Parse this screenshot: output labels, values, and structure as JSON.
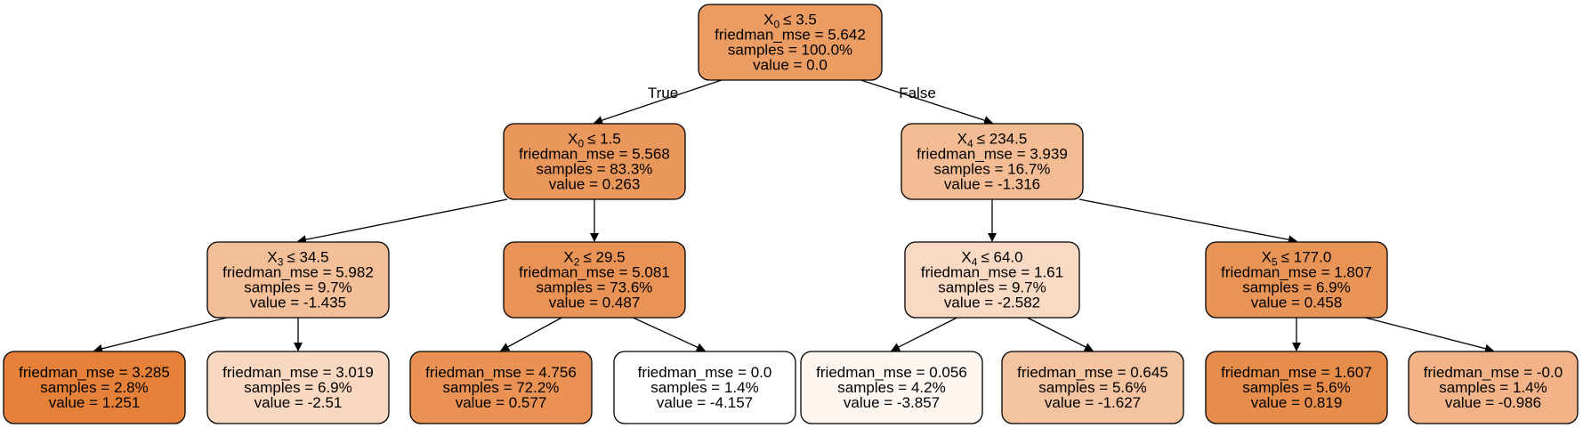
{
  "edge_labels": {
    "true_label": "True",
    "false_label": "False"
  },
  "nodes": [
    {
      "id": "root",
      "split_var": "X",
      "split_sub": "0",
      "split_op": "≤ 3.5",
      "mse": "friedman_mse = 5.642",
      "samples": "samples = 100.0%",
      "value": "value = 0.0",
      "fill": "#eb9c63"
    },
    {
      "id": "n1",
      "split_var": "X",
      "split_sub": "0",
      "split_op": "≤ 1.5",
      "mse": "friedman_mse = 5.568",
      "samples": "samples = 83.3%",
      "value": "value = 0.263",
      "fill": "#ea975c"
    },
    {
      "id": "n2",
      "split_var": "X",
      "split_sub": "4",
      "split_op": "≤ 234.5",
      "mse": "friedman_mse = 3.939",
      "samples": "samples = 16.7%",
      "value": "value = -1.316",
      "fill": "#f3bc94"
    },
    {
      "id": "n3",
      "split_var": "X",
      "split_sub": "3",
      "split_op": "≤ 34.5",
      "mse": "friedman_mse = 5.982",
      "samples": "samples = 9.7%",
      "value": "value = -1.435",
      "fill": "#f3bf99"
    },
    {
      "id": "n4",
      "split_var": "X",
      "split_sub": "2",
      "split_op": "≤ 29.5",
      "mse": "friedman_mse = 5.081",
      "samples": "samples = 73.6%",
      "value": "value = 0.487",
      "fill": "#e99356"
    },
    {
      "id": "n5",
      "split_var": "X",
      "split_sub": "4",
      "split_op": "≤ 64.0",
      "mse": "friedman_mse = 1.61",
      "samples": "samples = 9.7%",
      "value": "value = -2.582",
      "fill": "#f8dac4"
    },
    {
      "id": "n6",
      "split_var": "X",
      "split_sub": "5",
      "split_op": "≤ 177.0",
      "mse": "friedman_mse = 1.807",
      "samples": "samples = 6.9%",
      "value": "value = 0.458",
      "fill": "#e99457"
    },
    {
      "id": "l1",
      "mse": "friedman_mse = 3.285",
      "samples": "samples = 2.8%",
      "value": "value = 1.251",
      "fill": "#e58139"
    },
    {
      "id": "l2",
      "mse": "friedman_mse = 3.019",
      "samples": "samples = 6.9%",
      "value": "value = -2.51",
      "fill": "#f8d8c1"
    },
    {
      "id": "l3",
      "mse": "friedman_mse = 4.756",
      "samples": "samples = 72.2%",
      "value": "value = 0.577",
      "fill": "#e99253"
    },
    {
      "id": "l4",
      "mse": "friedman_mse = 0.0",
      "samples": "samples = 1.4%",
      "value": "value = -4.157",
      "fill": "#ffffff"
    },
    {
      "id": "l5",
      "mse": "friedman_mse = 0.056",
      "samples": "samples = 4.2%",
      "value": "value = -3.857",
      "fill": "#fdf6f1"
    },
    {
      "id": "l6",
      "mse": "friedman_mse = 0.645",
      "samples": "samples = 5.6%",
      "value": "value = -1.627",
      "fill": "#f4c39f"
    },
    {
      "id": "l7",
      "mse": "friedman_mse = 1.607",
      "samples": "samples = 5.6%",
      "value": "value = 0.819",
      "fill": "#e78d4c"
    },
    {
      "id": "l8",
      "mse": "friedman_mse = -0.0",
      "samples": "samples = 1.4%",
      "value": "value = -0.986",
      "fill": "#f1b387"
    }
  ],
  "edges": [
    {
      "from": "root",
      "to": "n1"
    },
    {
      "from": "root",
      "to": "n2"
    },
    {
      "from": "n1",
      "to": "n3"
    },
    {
      "from": "n1",
      "to": "n4"
    },
    {
      "from": "n2",
      "to": "n5"
    },
    {
      "from": "n2",
      "to": "n6"
    },
    {
      "from": "n3",
      "to": "l1"
    },
    {
      "from": "n3",
      "to": "l2"
    },
    {
      "from": "n4",
      "to": "l3"
    },
    {
      "from": "n4",
      "to": "l4"
    },
    {
      "from": "n5",
      "to": "l5"
    },
    {
      "from": "n5",
      "to": "l6"
    },
    {
      "from": "n6",
      "to": "l7"
    },
    {
      "from": "n6",
      "to": "l8"
    }
  ]
}
